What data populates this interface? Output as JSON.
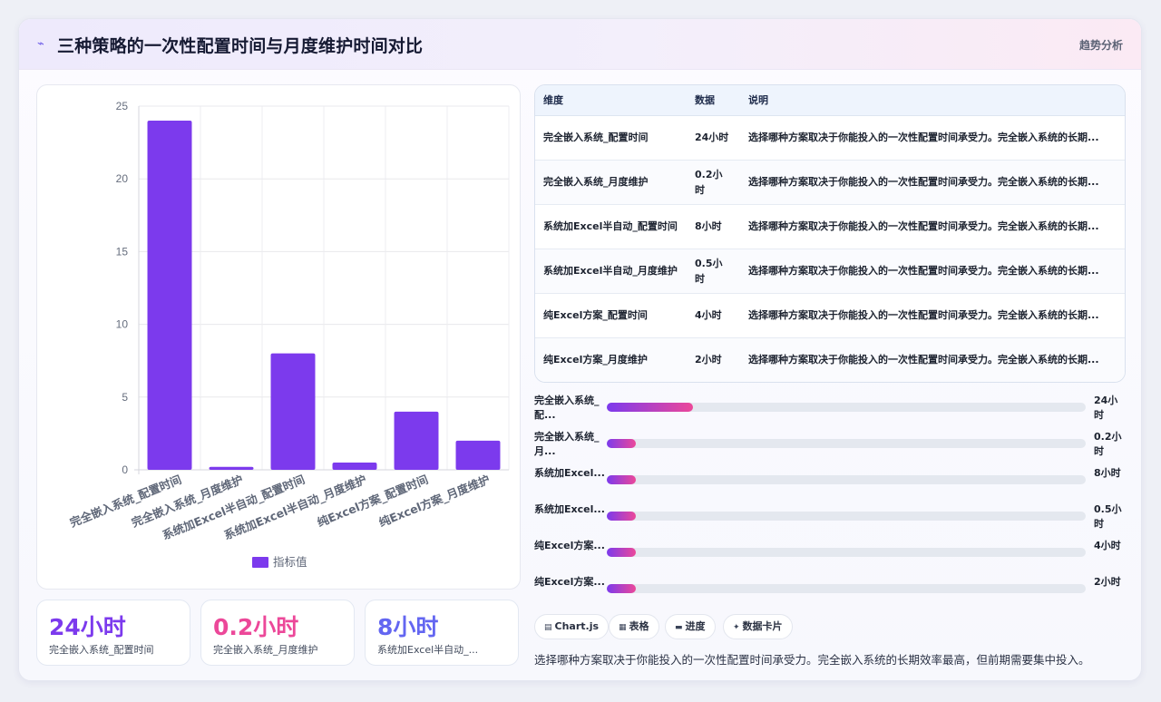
{
  "header": {
    "icon": "trend-icon",
    "title": "三种策略的一次性配置时间与月度维护时间对比",
    "link": "趋势分析"
  },
  "chart_data": {
    "type": "bar",
    "categories": [
      "完全嵌入系统_配置时间",
      "完全嵌入系统_月度维护",
      "系统加Excel半自动_配置时间",
      "系统加Excel半自动_月度维护",
      "纯Excel方案_配置时间",
      "纯Excel方案_月度维护"
    ],
    "series": [
      {
        "name": "指标值",
        "values": [
          24,
          0.2,
          8,
          0.5,
          4,
          2
        ]
      }
    ],
    "ylim": [
      0,
      25
    ],
    "yticks": [
      0,
      5,
      10,
      15,
      20,
      25
    ],
    "grid": true,
    "legend": "bottom",
    "color": "#7c3aed"
  },
  "kpis": [
    {
      "value": "24小时",
      "label": "完全嵌入系统_配置时间",
      "color": "#7c3aed"
    },
    {
      "value": "0.2小时",
      "label": "完全嵌入系统_月度维护",
      "color": "#ec4899"
    },
    {
      "value": "8小时",
      "label": "系统加Excel半自动_...",
      "color": "#6366f1"
    }
  ],
  "table": {
    "headers": [
      "维度",
      "数据",
      "说明"
    ],
    "rows": [
      {
        "dim": "完全嵌入系统_配置时间",
        "val": "24小时",
        "desc": "选择哪种方案取决于你能投入的一次性配置时间承受力。完全嵌入系统的长期..."
      },
      {
        "dim": "完全嵌入系统_月度维护",
        "val": "0.2小时",
        "desc": "选择哪种方案取决于你能投入的一次性配置时间承受力。完全嵌入系统的长期..."
      },
      {
        "dim": "系统加Excel半自动_配置时间",
        "val": "8小时",
        "desc": "选择哪种方案取决于你能投入的一次性配置时间承受力。完全嵌入系统的长期..."
      },
      {
        "dim": "系统加Excel半自动_月度维护",
        "val": "0.5小时",
        "desc": "选择哪种方案取决于你能投入的一次性配置时间承受力。完全嵌入系统的长期..."
      },
      {
        "dim": "纯Excel方案_配置时间",
        "val": "4小时",
        "desc": "选择哪种方案取决于你能投入的一次性配置时间承受力。完全嵌入系统的长期..."
      },
      {
        "dim": "纯Excel方案_月度维护",
        "val": "2小时",
        "desc": "选择哪种方案取决于你能投入的一次性配置时间承受力。完全嵌入系统的长期..."
      }
    ]
  },
  "progress": [
    {
      "label": "完全嵌入系统_配...",
      "value": "24小时",
      "fraction": 0.18
    },
    {
      "label": "完全嵌入系统_月...",
      "value": "0.2小时",
      "fraction": 0.06
    },
    {
      "label": "系统加Excel...",
      "value": "8小时",
      "fraction": 0.06
    },
    {
      "label": "系统加Excel...",
      "value": "0.5小时",
      "fraction": 0.06
    },
    {
      "label": "纯Excel方案...",
      "value": "4小时",
      "fraction": 0.06
    },
    {
      "label": "纯Excel方案...",
      "value": "2小时",
      "fraction": 0.06
    }
  ],
  "tags": [
    {
      "icon": "chart-icon",
      "glyph": "▤",
      "label": "Chart.js"
    },
    {
      "icon": "table-icon",
      "glyph": "▦",
      "label": "表格"
    },
    {
      "icon": "progress-icon",
      "glyph": "▬",
      "label": "进度"
    },
    {
      "icon": "card-icon",
      "glyph": "✦",
      "label": "数据卡片"
    }
  ],
  "summary": "选择哪种方案取决于你能投入的一次性配置时间承受力。完全嵌入系统的长期效率最高，但前期需要集中投入。"
}
